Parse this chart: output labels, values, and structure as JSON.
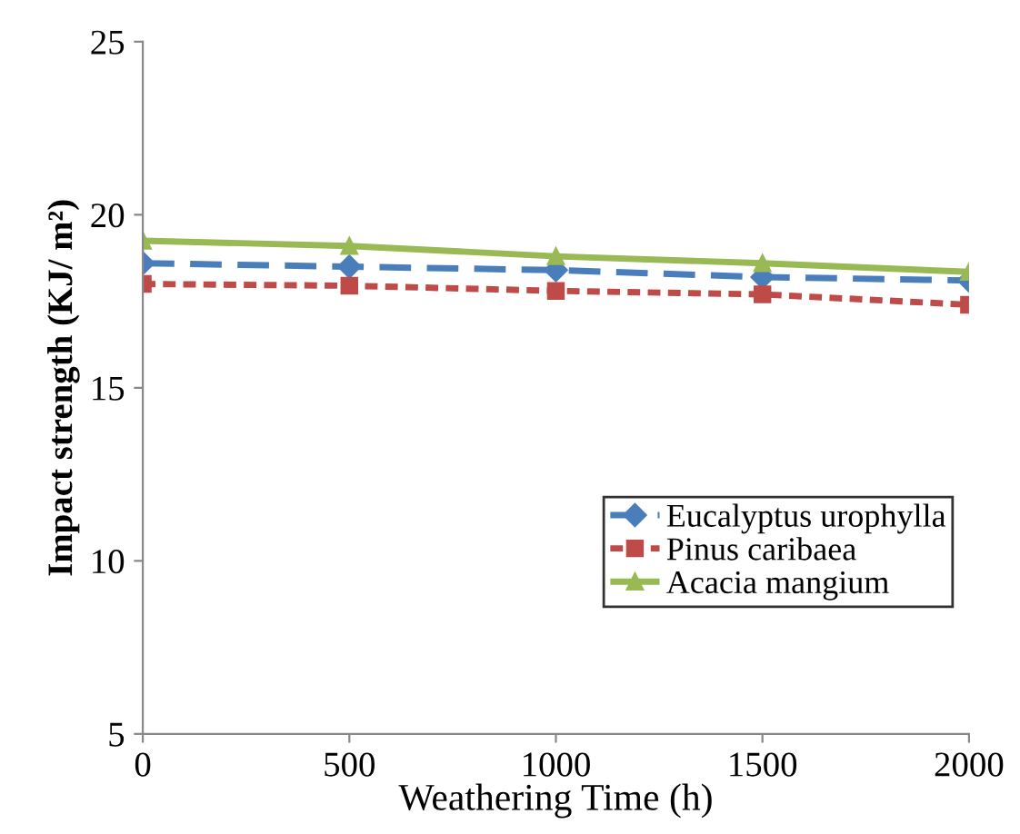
{
  "chart_data": {
    "type": "line",
    "xlabel": "Weathering Time (h)",
    "ylabel": "Impact strength (KJ/ m²)",
    "x": [
      0,
      500,
      1000,
      1500,
      2000
    ],
    "xlim": [
      0,
      2000
    ],
    "xticks": [
      0,
      500,
      1000,
      1500,
      2000
    ],
    "ylim": [
      5,
      25
    ],
    "yticks": [
      5,
      10,
      15,
      20,
      25
    ],
    "grid": false,
    "legend": "bottom right",
    "series": [
      {
        "name": "Eucalyptus urophylla",
        "color": "#4a7ebb",
        "marker": "diamond",
        "line_style": "dashed",
        "values": [
          18.6,
          18.5,
          18.4,
          18.2,
          18.1
        ]
      },
      {
        "name": "Pinus caribaea",
        "color": "#be4b48",
        "marker": "square",
        "line_style": "dotted",
        "values": [
          18.0,
          17.95,
          17.8,
          17.7,
          17.4
        ]
      },
      {
        "name": "Acacia mangium",
        "color": "#98b954",
        "marker": "triangle",
        "line_style": "solid",
        "values": [
          19.25,
          19.1,
          18.8,
          18.6,
          18.35
        ]
      }
    ]
  }
}
